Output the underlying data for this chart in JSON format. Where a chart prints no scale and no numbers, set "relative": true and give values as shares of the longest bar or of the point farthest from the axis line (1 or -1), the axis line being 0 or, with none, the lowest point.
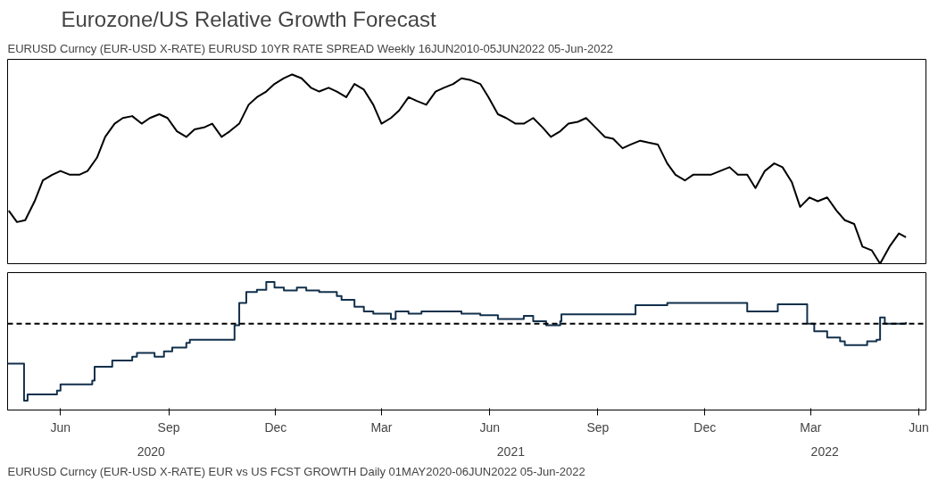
{
  "chart_data": [
    {
      "type": "line",
      "title": "Eurozone/US Relative Growth Forecast",
      "annotations": [
        "EURUSD Curncy (EUR-USD X-RATE) EURUSD 10YR RATE SPREAD  Weekly 16JUN2010-05JUN2022 05-Jun-2022"
      ],
      "relative": true,
      "xlim": [
        "2020-05-01",
        "2022-06-21"
      ],
      "tick_labels": false,
      "line_style": "solid",
      "series": [
        {
          "color": "#000000",
          "x": [
            "2020-05-02",
            "2020-05-09",
            "2020-05-16",
            "2020-05-24",
            "2020-05-31",
            "2020-06-08",
            "2020-06-15",
            "2020-06-23",
            "2020-07-01",
            "2020-07-08",
            "2020-07-16",
            "2020-07-23",
            "2020-07-31",
            "2020-08-07",
            "2020-08-15",
            "2020-08-23",
            "2020-08-30",
            "2020-09-07",
            "2020-09-14",
            "2020-09-22",
            "2020-09-30",
            "2020-10-07",
            "2020-10-15",
            "2020-10-22",
            "2020-10-30",
            "2020-11-06",
            "2020-11-14",
            "2020-11-22",
            "2020-11-29",
            "2020-12-07",
            "2020-12-14",
            "2020-12-22",
            "2020-12-29",
            "2021-01-06",
            "2021-01-14",
            "2021-01-21",
            "2021-01-29",
            "2021-02-05",
            "2021-02-13",
            "2021-02-20",
            "2021-02-28",
            "2021-03-08",
            "2021-03-15",
            "2021-03-23",
            "2021-03-30",
            "2021-04-07",
            "2021-04-14",
            "2021-04-22",
            "2021-04-30",
            "2021-05-07",
            "2021-05-15",
            "2021-05-22",
            "2021-05-30",
            "2021-06-07",
            "2021-06-14",
            "2021-06-22",
            "2021-06-29",
            "2021-07-07",
            "2021-07-14",
            "2021-07-22",
            "2021-07-30",
            "2021-08-06",
            "2021-08-14",
            "2021-08-21",
            "2021-08-29",
            "2021-09-05",
            "2021-09-13",
            "2021-09-21",
            "2021-09-28",
            "2021-10-06",
            "2021-10-13",
            "2021-10-21",
            "2021-10-28",
            "2021-11-05",
            "2021-11-13",
            "2021-11-20",
            "2021-11-28",
            "2021-12-05",
            "2021-12-13",
            "2021-12-20",
            "2021-12-28",
            "2022-01-05",
            "2022-01-12",
            "2022-01-20",
            "2022-01-27",
            "2022-02-04",
            "2022-02-12",
            "2022-02-19",
            "2022-02-27",
            "2022-03-06",
            "2022-03-14",
            "2022-03-21",
            "2022-03-29",
            "2022-04-06",
            "2022-04-13",
            "2022-04-21",
            "2022-04-28",
            "2022-05-06",
            "2022-05-13",
            "2022-05-21",
            "2022-05-29",
            "2022-06-04"
          ],
          "values": [
            0.28,
            0.22,
            0.23,
            0.33,
            0.44,
            0.47,
            0.49,
            0.47,
            0.47,
            0.49,
            0.56,
            0.67,
            0.74,
            0.77,
            0.78,
            0.74,
            0.77,
            0.79,
            0.77,
            0.7,
            0.67,
            0.71,
            0.72,
            0.74,
            0.67,
            0.7,
            0.74,
            0.84,
            0.88,
            0.91,
            0.95,
            0.98,
            1.0,
            0.98,
            0.93,
            0.91,
            0.93,
            0.91,
            0.88,
            0.95,
            0.92,
            0.84,
            0.74,
            0.77,
            0.81,
            0.88,
            0.86,
            0.84,
            0.91,
            0.93,
            0.95,
            0.98,
            0.97,
            0.95,
            0.88,
            0.79,
            0.77,
            0.74,
            0.74,
            0.77,
            0.72,
            0.67,
            0.7,
            0.74,
            0.75,
            0.77,
            0.72,
            0.67,
            0.66,
            0.61,
            0.63,
            0.65,
            0.64,
            0.63,
            0.53,
            0.47,
            0.44,
            0.47,
            0.47,
            0.47,
            0.49,
            0.51,
            0.47,
            0.47,
            0.4,
            0.49,
            0.53,
            0.51,
            0.43,
            0.3,
            0.35,
            0.33,
            0.35,
            0.28,
            0.23,
            0.21,
            0.09,
            0.07,
            0.0,
            0.09,
            0.16,
            0.14
          ]
        }
      ]
    },
    {
      "type": "step",
      "annotations": [
        "EURUSD Curncy (EUR-USD X-RATE) EUR vs US FCST GROWTH  Daily 01MAY2020-06JUN2022   05-Jun-2022"
      ],
      "relative": true,
      "xlim": [
        "2020-05-01",
        "2022-06-21"
      ],
      "tick_labels": "x",
      "line_style": "solid",
      "xticks": [
        {
          "value": "2020-06-15",
          "label": "Jun"
        },
        {
          "value": "2020-09-15",
          "label": "Sep"
        },
        {
          "value": "2020-12-15",
          "label": "Dec"
        },
        {
          "value": "2021-03-15",
          "label": "Mar"
        },
        {
          "value": "2021-06-15",
          "label": "Jun"
        },
        {
          "value": "2021-09-15",
          "label": "Sep"
        },
        {
          "value": "2021-12-15",
          "label": "Dec"
        },
        {
          "value": "2022-03-15",
          "label": "Mar"
        },
        {
          "value": "2022-06-15",
          "label": "Jun"
        }
      ],
      "x2lim": [
        "2020-05-01",
        "2022-06-21"
      ],
      "x2ticks": [
        {
          "value": "2020-08-31",
          "label": "2020"
        },
        {
          "value": "2021-07-03",
          "label": "2021"
        },
        {
          "value": "2022-03-27",
          "label": "2022"
        }
      ],
      "ref_lines": [
        {
          "axis": "y",
          "value": 0,
          "color": "#000000",
          "line_style": "dashed"
        }
      ],
      "series": [
        {
          "color": "#12304c",
          "x": [
            "2020-05-01",
            "2020-05-15",
            "2020-05-18",
            "2020-06-12",
            "2020-06-15",
            "2020-07-12",
            "2020-07-14",
            "2020-07-29",
            "2020-08-15",
            "2020-08-19",
            "2020-09-03",
            "2020-09-11",
            "2020-09-18",
            "2020-09-30",
            "2020-10-03",
            "2020-11-10",
            "2020-11-14",
            "2020-11-20",
            "2020-11-29",
            "2020-12-07",
            "2020-12-14",
            "2020-12-22",
            "2021-01-02",
            "2021-01-10",
            "2021-01-21",
            "2021-02-05",
            "2021-02-09",
            "2021-02-20",
            "2021-02-28",
            "2021-03-08",
            "2021-03-23",
            "2021-03-27",
            "2021-04-07",
            "2021-04-18",
            "2021-05-22",
            "2021-06-07",
            "2021-06-22",
            "2021-07-14",
            "2021-07-22",
            "2021-08-02",
            "2021-08-14",
            "2021-08-15",
            "2021-08-25",
            "2021-10-17",
            "2021-11-13",
            "2022-01-20",
            "2022-02-15",
            "2022-03-12",
            "2022-03-18",
            "2022-03-29",
            "2022-04-09",
            "2022-04-13",
            "2022-05-02",
            "2022-05-10",
            "2022-05-13",
            "2022-05-17",
            "2022-06-04"
          ],
          "values": [
            -0.52,
            -1.0,
            -0.92,
            -0.87,
            -0.79,
            -0.74,
            -0.56,
            -0.48,
            -0.43,
            -0.38,
            -0.43,
            -0.36,
            -0.31,
            -0.25,
            -0.21,
            -0.02,
            0.27,
            0.41,
            0.44,
            0.54,
            0.47,
            0.43,
            0.47,
            0.43,
            0.41,
            0.36,
            0.31,
            0.22,
            0.16,
            0.13,
            0.06,
            0.16,
            0.13,
            0.16,
            0.13,
            0.11,
            0.06,
            0.1,
            0.03,
            -0.02,
            0.03,
            0.12,
            0.12,
            0.24,
            0.27,
            0.16,
            0.25,
            0.0,
            -0.1,
            -0.18,
            -0.23,
            -0.28,
            -0.23,
            -0.21,
            0.08,
            0.0,
            0.02
          ]
        }
      ]
    }
  ]
}
